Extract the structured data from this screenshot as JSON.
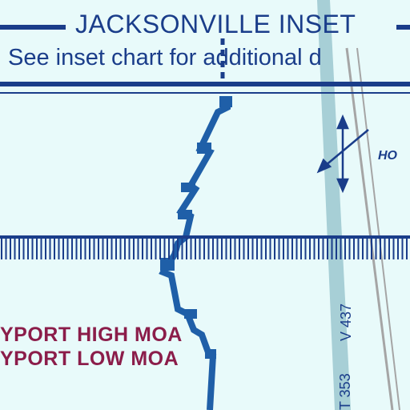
{
  "inset": {
    "title": "JACKSONVILLE INSET",
    "subtitle": "See inset chart for additional d"
  },
  "airspace": {
    "moa_high": "YPORT HIGH MOA",
    "moa_low": "YPORT LOW MOA"
  },
  "labels": {
    "hot_partial": "HO",
    "airway_437": "V 437",
    "airway_353": "T 353"
  },
  "colors": {
    "background": "#e8fafa",
    "boundary_blue": "#1f5fa8",
    "dark_blue": "#1a3d8a",
    "moa_magenta": "#8b1d4a",
    "airway_band": "#a7cfd6",
    "road_gray": "#a5a5a5"
  },
  "symbols": {
    "arrow_pair": "crossed-double-arrow-icon"
  }
}
